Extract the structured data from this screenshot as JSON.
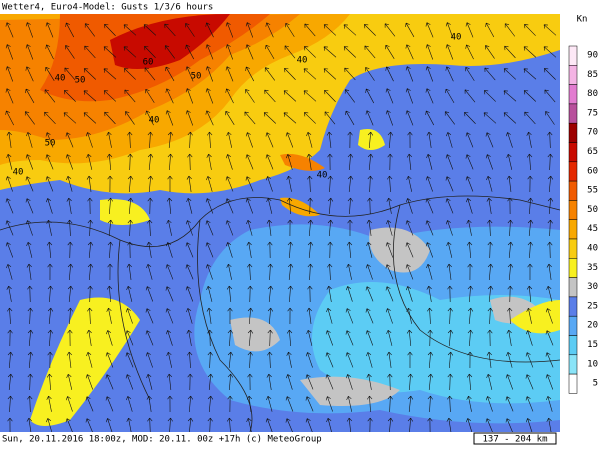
{
  "header": {
    "title": "Wetter4, Euro4-Model: Gusts 1/3/6 hours"
  },
  "footer": {
    "info": "Sun, 20.11.2016 18:00z, MOD: 20.11. 00z +17h (c) MeteoGroup",
    "scale": "137 - 204 km"
  },
  "legend": {
    "unit": "Kn",
    "levels": [
      {
        "label": "90",
        "color": "#fde8f6"
      },
      {
        "label": "85",
        "color": "#f4b4e4"
      },
      {
        "label": "80",
        "color": "#e27cd0"
      },
      {
        "label": "75",
        "color": "#b8509c"
      },
      {
        "label": "70",
        "color": "#9c0000"
      },
      {
        "label": "65",
        "color": "#c80a00"
      },
      {
        "label": "60",
        "color": "#e42800"
      },
      {
        "label": "55",
        "color": "#f05a00"
      },
      {
        "label": "50",
        "color": "#f68200"
      },
      {
        "label": "45",
        "color": "#f8a800"
      },
      {
        "label": "40",
        "color": "#f8cc10"
      },
      {
        "label": "35",
        "color": "#f8f020"
      },
      {
        "label": "30",
        "color": "#c4c4c4"
      },
      {
        "label": "25",
        "color": "#5a7ee8"
      },
      {
        "label": "20",
        "color": "#58a8f4"
      },
      {
        "label": "15",
        "color": "#5cccf4"
      },
      {
        "label": "10",
        "color": "#8ae4f8"
      },
      {
        "label": "5",
        "color": "#ffffff"
      }
    ]
  },
  "map": {
    "contour_labels": [
      "60",
      "50",
      "50",
      "50",
      "40",
      "40",
      "40",
      "40",
      "40",
      "40"
    ]
  }
}
